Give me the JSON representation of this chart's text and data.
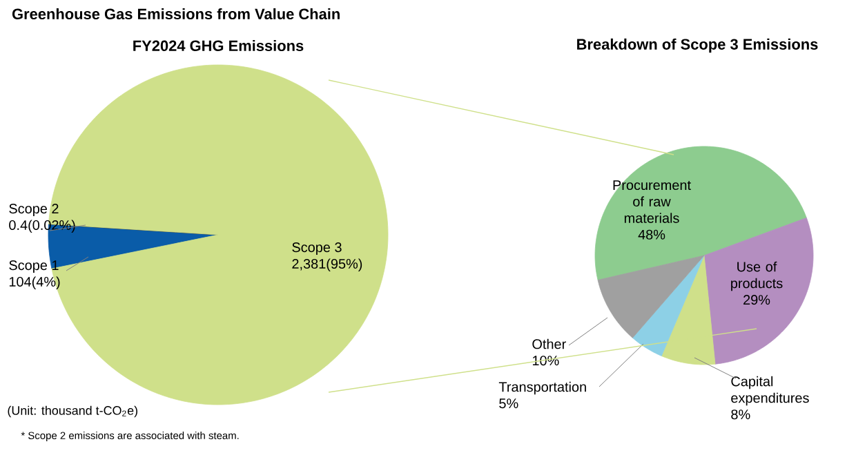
{
  "chart_data": [
    {
      "type": "pie",
      "title": "Greenhouse Gas Emissions from Value Chain",
      "subtitle": "FY2024 GHG Emissions",
      "categories": [
        "Scope 1",
        "Scope 2",
        "Scope 3"
      ],
      "values": [
        104,
        0.4,
        2381
      ],
      "colors": [
        "#0a5ca8",
        "#333333",
        "#cfe08a"
      ],
      "value_labels": [
        "104(4%)",
        "0.4(0.02%)",
        "2,381(95%)"
      ],
      "annotations": [
        "(Unit: thousand t-CO$_{2}$e)",
        "* Scope 2 emissions are associated with steam."
      ]
    },
    {
      "type": "pie",
      "title": "Breakdown of Scope 3 Emissions",
      "categories": [
        "Procurement of raw materials",
        "Use of products",
        "Capital expenditures",
        "Transportation",
        "Other"
      ],
      "values": [
        48,
        29,
        8,
        5,
        10
      ],
      "colors": [
        "#8dcc8f",
        "#b48ec0",
        "#cfe08a",
        "#8dd0e6",
        "#a0a0a0"
      ],
      "value_labels": [
        "48%",
        "29%",
        "8%",
        "5%",
        "10%"
      ]
    }
  ]
}
